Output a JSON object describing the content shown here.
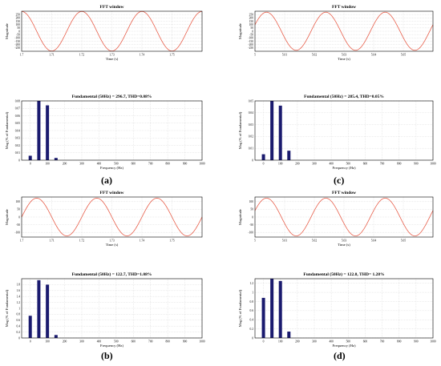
{
  "colors": {
    "wave": "#e8604c",
    "bar": "#1a1a6e",
    "grid": "#d9d9d9",
    "axis": "#000000"
  },
  "panel_labels": [
    "(a)",
    "(b)",
    "(c)",
    "(d)"
  ],
  "chart_data": [
    {
      "id": "a-fft-window",
      "type": "line",
      "title": "FFT window",
      "xlabel": "Time (s)",
      "ylabel": "Magnitude",
      "xlim": [
        1.7,
        1.76
      ],
      "ylim": [
        -300,
        300
      ],
      "xticks": [
        1.7,
        1.71,
        1.72,
        1.73,
        1.74,
        1.75
      ],
      "yticks": [
        -250,
        -200,
        -150,
        -100,
        -50,
        0,
        50,
        100,
        150,
        200,
        250
      ],
      "series": [
        {
          "amplitude": 296.7,
          "frequency_hz": 50,
          "phase_deg": 90
        }
      ],
      "grid": true
    },
    {
      "id": "a-spectrum",
      "type": "bar",
      "title": "Fundamental (50Hz) = 296.7, THD=0.08%",
      "xlabel": "Frequency (Hz)",
      "ylabel": "Mag (% of Fundamental)",
      "xlim": [
        -50,
        1000
      ],
      "ylim": [
        0,
        0.08
      ],
      "xticks": [
        0,
        100,
        200,
        300,
        400,
        500,
        600,
        700,
        800,
        900,
        1000
      ],
      "yticks": [
        0,
        0.01,
        0.02,
        0.03,
        0.04,
        0.05,
        0.06,
        0.07,
        0.08
      ],
      "x": [
        0,
        50,
        100,
        150
      ],
      "values": [
        0.006,
        0.08,
        0.074,
        0.003
      ],
      "grid": true
    },
    {
      "id": "b-fft-window",
      "type": "line",
      "title": "FFT window",
      "xlabel": "Time (s)",
      "ylabel": "Magnitude",
      "xlim": [
        1.7,
        1.76
      ],
      "ylim": [
        -130,
        130
      ],
      "xticks": [
        1.7,
        1.71,
        1.72,
        1.73,
        1.74,
        1.75
      ],
      "yticks": [
        -100,
        -50,
        0,
        50,
        100
      ],
      "series": [
        {
          "amplitude": 122.7,
          "frequency_hz": 50,
          "phase_deg": 0
        }
      ],
      "grid": true
    },
    {
      "id": "b-spectrum",
      "type": "bar",
      "title": "Fundamental (50Hz) = 122.7, THD=1.08%",
      "xlabel": "Frequency (Hz)",
      "ylabel": "Mag (% of Fundamental)",
      "xlim": [
        -50,
        1000
      ],
      "ylim": [
        0,
        2
      ],
      "xticks": [
        0,
        100,
        200,
        300,
        400,
        500,
        600,
        700,
        800,
        900,
        1000
      ],
      "yticks": [
        0,
        0.2,
        0.4,
        0.6,
        0.8,
        1,
        1.2,
        1.4,
        1.6,
        1.8
      ],
      "x": [
        0,
        50,
        100,
        150
      ],
      "values": [
        0.75,
        1.95,
        1.8,
        0.1
      ],
      "grid": true
    },
    {
      "id": "c-fft-window",
      "type": "line",
      "title": "FFT window",
      "xlabel": "Time (s)",
      "ylabel": "Magnitude",
      "xlim": [
        5,
        5.06
      ],
      "ylim": [
        -300,
        300
      ],
      "xticks": [
        5,
        5.01,
        5.02,
        5.03,
        5.04,
        5.05
      ],
      "yticks": [
        -250,
        -200,
        -150,
        -100,
        -50,
        0,
        50,
        100,
        150,
        200,
        250
      ],
      "series": [
        {
          "amplitude": 285.4,
          "frequency_hz": 50,
          "phase_deg": 20
        }
      ],
      "grid": true
    },
    {
      "id": "c-spectrum",
      "type": "bar",
      "title": "Fundamental (50Hz) = 285.4, THD=0.05%",
      "xlabel": "Frequency (Hz)",
      "ylabel": "Mag (% of Fundamental)",
      "xlim": [
        -50,
        1000
      ],
      "ylim": [
        0,
        0.05
      ],
      "xticks": [
        0,
        100,
        200,
        300,
        400,
        500,
        600,
        700,
        800,
        900,
        1000
      ],
      "yticks": [
        0,
        0.01,
        0.02,
        0.03,
        0.04,
        0.05
      ],
      "x": [
        0,
        50,
        100,
        150
      ],
      "values": [
        0.005,
        0.05,
        0.046,
        0.008
      ],
      "grid": true
    },
    {
      "id": "d-fft-window",
      "type": "line",
      "title": "FFT window",
      "xlabel": "Time (s)",
      "ylabel": "Magnitude",
      "xlim": [
        5,
        5.06
      ],
      "ylim": [
        -130,
        130
      ],
      "xticks": [
        5,
        5.01,
        5.02,
        5.03,
        5.04,
        5.05
      ],
      "yticks": [
        -100,
        -50,
        0,
        50,
        100
      ],
      "series": [
        {
          "amplitude": 122.8,
          "frequency_hz": 50,
          "phase_deg": 20
        }
      ],
      "grid": true
    },
    {
      "id": "d-spectrum",
      "type": "bar",
      "title": "Fundamental (50Hz) = 122.8, THD= 1.28%",
      "xlabel": "Frequency (Hz)",
      "ylabel": "Mag (% of Fundamental)",
      "xlim": [
        -50,
        1000
      ],
      "ylim": [
        0,
        1.3
      ],
      "xticks": [
        0,
        100,
        200,
        300,
        400,
        500,
        600,
        700,
        800,
        900,
        1000
      ],
      "yticks": [
        0,
        0.2,
        0.4,
        0.6,
        0.8,
        1,
        1.2
      ],
      "x": [
        0,
        50,
        100,
        150
      ],
      "values": [
        0.88,
        1.3,
        1.25,
        0.14
      ],
      "grid": true
    }
  ]
}
